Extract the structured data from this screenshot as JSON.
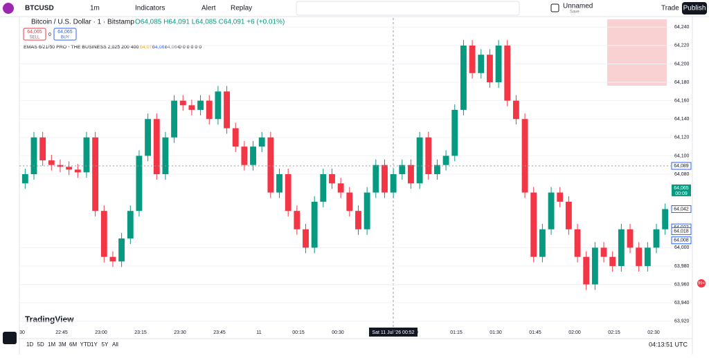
{
  "header": {
    "symbol": "BTCUSD",
    "interval": "1m",
    "indicators": "Indicators",
    "alert": "Alert",
    "replay": "Replay",
    "layout_name": "Unnamed",
    "layout_status": "Save",
    "trade": "Trade",
    "publish": "Publish"
  },
  "legend": {
    "title": "Bitcoin / U.S. Dollar · 1 · Bitstamp",
    "ohlc": "O64,085 H64,091 L64,085 C64,091 +6 (+0.01%)",
    "sell_price": "64,065",
    "sell": "SELL",
    "spread": "0",
    "buy_price": "64,065",
    "buy": "BUY",
    "indicator": "EMAS 6/21/50 PRO - THE BUSINESS 2,025 200 400",
    "ema1": "64,070",
    "ema2": "64,061",
    "ema3": "64,064",
    "zeros": "0 0 0 0 0 0"
  },
  "chart": {
    "type": "candlestick",
    "ylim": [
      63910,
      64250
    ],
    "yticks": [
      {
        "value": 64240,
        "label": "64,240"
      },
      {
        "value": 64220,
        "label": "64,220"
      },
      {
        "value": 64200,
        "label": "64,200"
      },
      {
        "value": 64180,
        "label": "64,180"
      },
      {
        "value": 64160,
        "label": "64,160"
      },
      {
        "value": 64140,
        "label": "64,140"
      },
      {
        "value": 64120,
        "label": "64,120"
      },
      {
        "value": 64100,
        "label": "64,100"
      },
      {
        "value": 64080,
        "label": "64,080"
      },
      {
        "value": 64000,
        "label": "64,000"
      },
      {
        "value": 63980,
        "label": "63,980"
      },
      {
        "value": 63960,
        "label": "63,960"
      },
      {
        "value": 63940,
        "label": "63,940"
      },
      {
        "value": 63920,
        "label": "63,920"
      }
    ],
    "badges": [
      {
        "value": 64089,
        "label": "64,089",
        "color": "#ffffff"
      },
      {
        "value": 64065,
        "label": "64,065",
        "color": "#089981"
      },
      {
        "value": 64042,
        "label": "64,042",
        "color": "#ffffff"
      },
      {
        "value": 64022,
        "label": "64,022",
        "color": "#ffffff"
      },
      {
        "value": 64018,
        "label": "64,018",
        "color": "#ffffff"
      },
      {
        "value": 64008,
        "label": "64,008",
        "color": "#ffffff"
      }
    ],
    "countdown": "00:09",
    "time_labels": [
      "30",
      "22:45",
      "23:00",
      "23:15",
      "23:30",
      "23:45",
      "11",
      "00:15",
      "00:30",
      null,
      "0",
      "01:15",
      "01:30",
      "01:45",
      "02:00",
      "02:15",
      "02:30"
    ],
    "crosshair_time": "Sat 11 Jul '26  00:52",
    "up_color": "#089981",
    "down_color": "#f23645",
    "open": [
      64070,
      64080,
      64120,
      64095,
      64090,
      64088,
      64085,
      64082,
      64120,
      64040,
      63990,
      63985,
      64010,
      64040,
      64100,
      64140,
      64080,
      64120,
      64160,
      64155,
      64150,
      64160,
      64140,
      64170,
      64130,
      64110,
      64090,
      64110,
      64120,
      64060,
      64080,
      64040,
      64020,
      64000,
      64050,
      64080,
      64070,
      64060,
      64040,
      64020,
      64060,
      64090,
      64060,
      64080,
      64090,
      64070,
      64120,
      64080,
      64090,
      64100,
      64150,
      64220,
      64190,
      64210,
      64180,
      64220,
      64160,
      64140,
      64060,
      63990,
      64020,
      64060,
      64050,
      64020,
      63990,
      63960,
      64000,
      63990,
      63980,
      64020,
      64000,
      63980,
      64000,
      64020
    ],
    "high": [
      64086,
      64126,
      64126,
      64101,
      64096,
      64094,
      64091,
      64126,
      64126,
      64046,
      63996,
      64016,
      64046,
      64106,
      64146,
      64146,
      64126,
      64166,
      64166,
      64161,
      64166,
      64166,
      64176,
      64176,
      64136,
      64116,
      64116,
      64126,
      64126,
      64086,
      64086,
      64046,
      64026,
      64056,
      64086,
      64086,
      64076,
      64066,
      64046,
      64066,
      64096,
      64096,
      64086,
      64096,
      64096,
      64126,
      64126,
      64096,
      64106,
      64156,
      64226,
      64226,
      64216,
      64216,
      64226,
      64226,
      64166,
      64146,
      64066,
      64026,
      64066,
      64066,
      64056,
      64026,
      63996,
      64006,
      64006,
      63996,
      64026,
      64026,
      64006,
      64006,
      64026,
      64048
    ],
    "low": [
      64064,
      64074,
      64089,
      64084,
      64082,
      64079,
      64076,
      64076,
      64034,
      63984,
      63979,
      63979,
      64004,
      64034,
      64094,
      64074,
      64074,
      64114,
      64149,
      64144,
      64144,
      64134,
      64134,
      64124,
      64104,
      64084,
      64084,
      64104,
      64054,
      64054,
      64034,
      64014,
      63994,
      63994,
      64044,
      64064,
      64054,
      64034,
      64014,
      64014,
      64054,
      64054,
      64054,
      64074,
      64064,
      64064,
      64074,
      64074,
      64084,
      64094,
      64144,
      64184,
      64184,
      64174,
      64174,
      64154,
      64134,
      64054,
      63984,
      63984,
      64014,
      64044,
      64014,
      63984,
      63954,
      63954,
      63984,
      63974,
      63974,
      63994,
      63974,
      63974,
      63994,
      64014
    ],
    "close": [
      64080,
      64120,
      64095,
      64090,
      64088,
      64085,
      64082,
      64120,
      64040,
      63990,
      63985,
      64010,
      64040,
      64100,
      64140,
      64080,
      64120,
      64160,
      64155,
      64150,
      64160,
      64140,
      64170,
      64130,
      64110,
      64090,
      64110,
      64120,
      64060,
      64080,
      64040,
      64020,
      64000,
      64050,
      64080,
      64070,
      64060,
      64040,
      64020,
      64060,
      64090,
      64060,
      64080,
      64090,
      64070,
      64120,
      64080,
      64090,
      64100,
      64150,
      64220,
      64190,
      64210,
      64180,
      64220,
      64160,
      64140,
      64060,
      63990,
      64020,
      64060,
      64050,
      64020,
      63990,
      63960,
      64000,
      63990,
      63980,
      64020,
      64000,
      63980,
      64000,
      64020,
      64042
    ]
  },
  "footer": {
    "ranges": [
      "1D",
      "5D",
      "1M",
      "3M",
      "6M",
      "YTD",
      "1Y",
      "5Y",
      "All"
    ],
    "clock": "04:13:51 UTC",
    "logo": "TradingView",
    "notifications": "99+"
  }
}
